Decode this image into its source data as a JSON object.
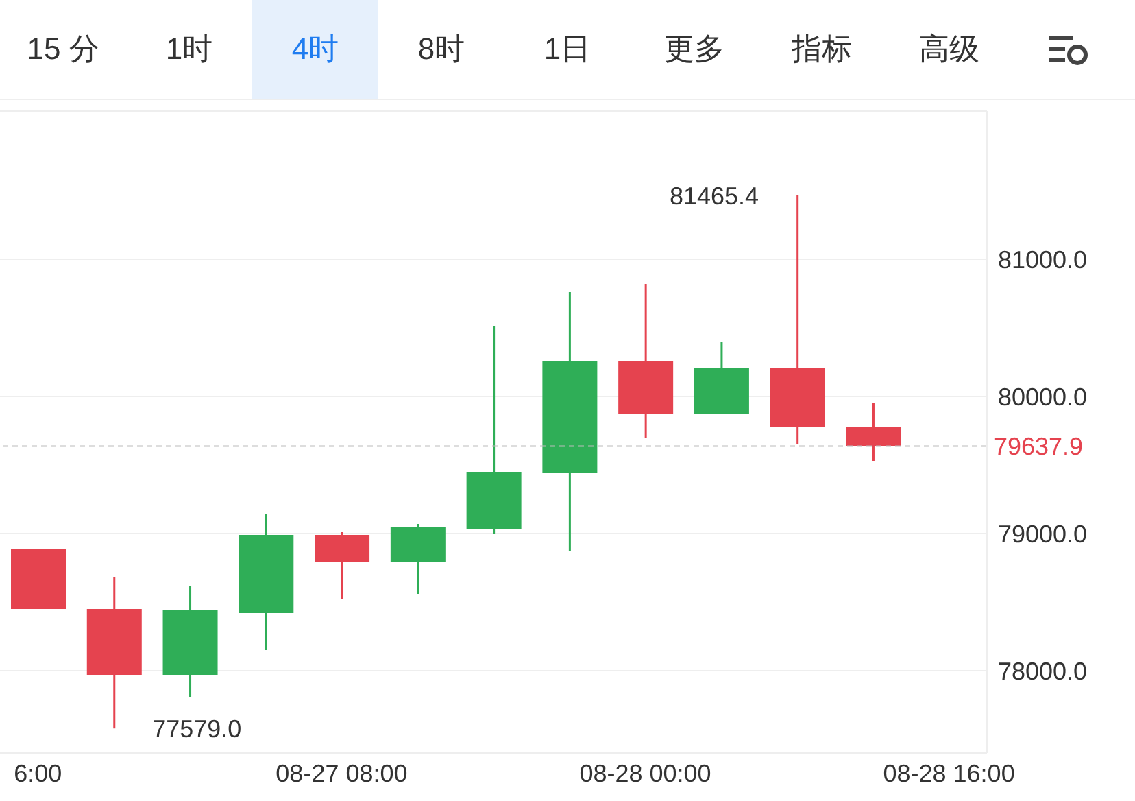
{
  "chart_data": {
    "type": "candlestick",
    "categories": [
      "6:00",
      null,
      null,
      null,
      "08-27 08:00",
      null,
      null,
      null,
      "08-28 00:00",
      null,
      null,
      null,
      "08-28 16:00"
    ],
    "ohlc": [
      [
        78890,
        78890,
        78450,
        78450
      ],
      [
        78450,
        78680,
        77579.0,
        77970
      ],
      [
        77970,
        78620,
        77810,
        78440
      ],
      [
        78420,
        79140,
        78150,
        78990
      ],
      [
        78990,
        79010,
        78520,
        78790
      ],
      [
        78790,
        79070,
        78560,
        79050
      ],
      [
        79030,
        80510,
        79000,
        79450
      ],
      [
        79440,
        80760,
        78870,
        80260
      ],
      [
        80260,
        80820,
        79700,
        79870
      ],
      [
        79870,
        80400,
        79870,
        80210
      ],
      [
        80210,
        81465.4,
        79650,
        79780
      ],
      [
        79780,
        79950,
        79530,
        79637.9
      ],
      null
    ],
    "colors": [
      "#e5434f",
      "#e5434f",
      "#2fae57",
      "#2fae57",
      "#e5434f",
      "#2fae57",
      "#2fae57",
      "#2fae57",
      "#e5434f",
      "#2fae57",
      "#e5434f",
      "#e5434f",
      null
    ],
    "ylim": [
      77400,
      82080
    ],
    "yticks": [
      {
        "value": 78000,
        "label": "78000.0"
      },
      {
        "value": 79000,
        "label": "79000.0"
      },
      {
        "value": 80000,
        "label": "80000.0"
      },
      {
        "value": 81000,
        "label": "81000.0"
      }
    ],
    "grid": "y",
    "ref_lines": [
      {
        "axis": "y",
        "value": 79637.9,
        "label": "79637.9",
        "color": "#bbbbbb",
        "line_style": "dashed"
      }
    ],
    "annotations": [
      "15 分",
      "1时",
      "4时",
      "8时",
      "1日",
      "更多",
      "指标",
      "高级",
      "81465.4",
      "77579.0"
    ]
  }
}
